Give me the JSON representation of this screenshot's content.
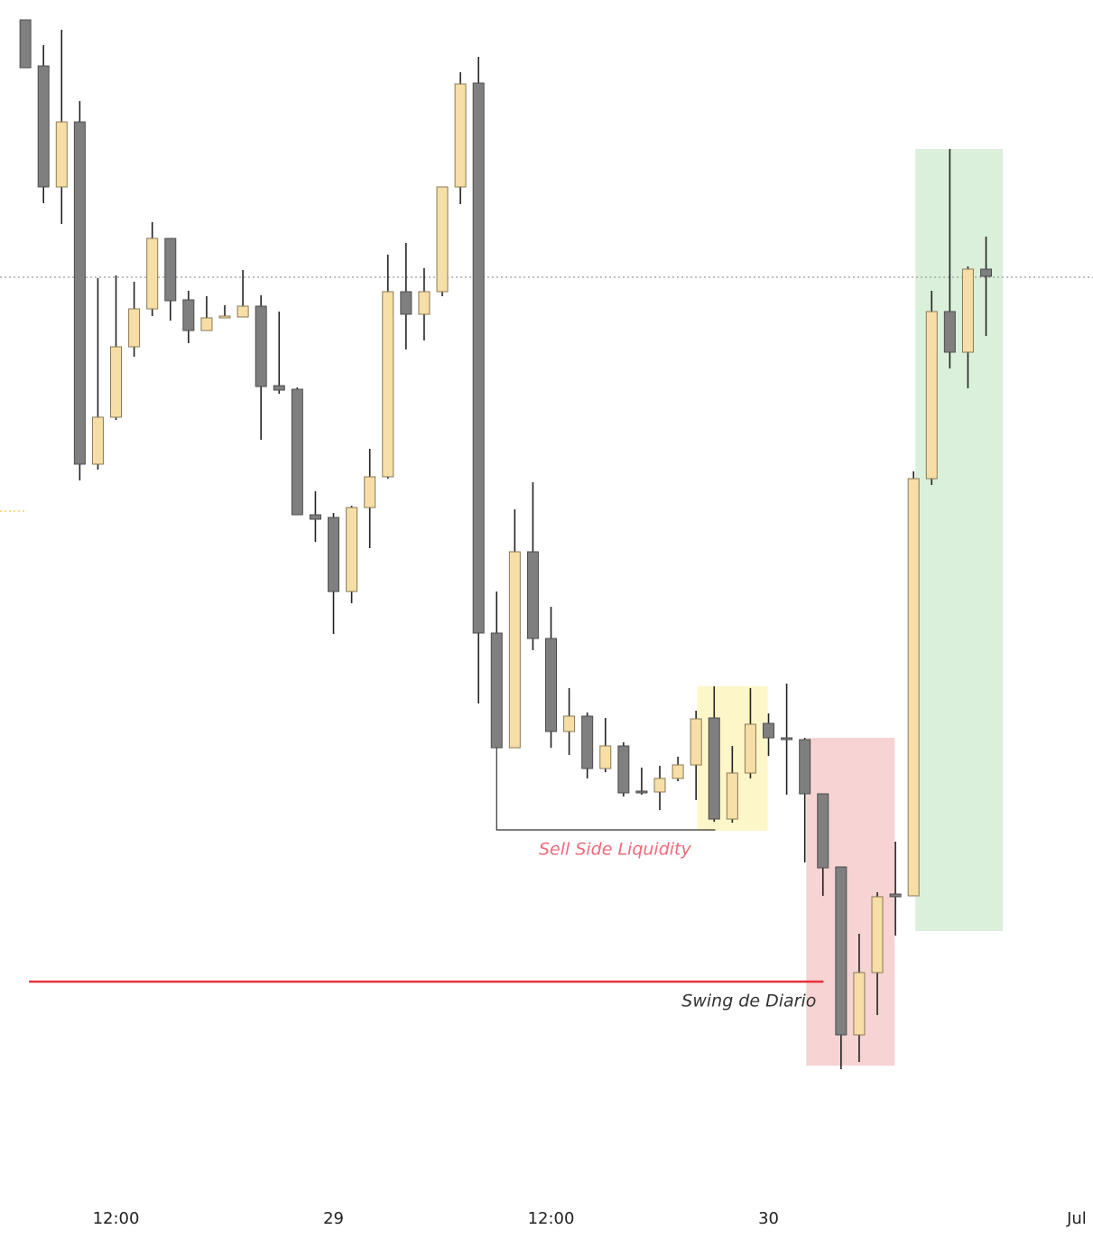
{
  "chart_data": {
    "type": "candlestick",
    "categories": [
      null,
      null,
      null,
      null,
      null,
      null,
      null,
      null,
      null,
      null,
      null,
      null,
      null,
      null,
      null,
      null,
      null,
      null,
      null,
      null,
      null,
      null,
      null,
      null,
      null,
      null,
      null,
      null,
      null,
      null,
      null,
      null,
      null,
      null,
      null,
      null,
      null,
      null,
      null,
      null,
      null,
      null,
      null,
      null,
      null,
      null,
      null,
      null,
      null,
      null,
      null,
      null,
      null,
      null
    ],
    "open": [
      1378,
      1327,
      1193,
      1265,
      886,
      938,
      1016,
      1058,
      1136,
      1068,
      1034,
      1048,
      1049,
      1061,
      973,
      969,
      830,
      827,
      745,
      838,
      872,
      1077,
      1052,
      1077,
      1193,
      1308,
      699,
      572,
      789,
      693,
      590,
      607,
      549,
      574,
      524,
      523,
      538,
      553,
      605,
      493,
      544,
      599,
      583,
      581,
      521,
      440,
      254,
      323,
      410,
      408,
      870,
      1055,
      1010,
      1102
    ],
    "high": [
      1378,
      1350,
      1367,
      1288,
      1092,
      1095,
      1088,
      1154,
      1136,
      1078,
      1072,
      1062,
      1101,
      1073,
      1055,
      971,
      856,
      832,
      840,
      903,
      1118,
      1131,
      1103,
      1193,
      1320,
      1337,
      745,
      836,
      866,
      728,
      638,
      611,
      605,
      578,
      550,
      552,
      562,
      613,
      640,
      574,
      638,
      610,
      643,
      583,
      521,
      440,
      366,
      412,
      468,
      878,
      1078,
      1235,
      1105,
      1138
    ],
    "low": [
      1325,
      1175,
      1152,
      868,
      880,
      935,
      1005,
      1050,
      1045,
      1020,
      1034,
      1048,
      1049,
      913,
      964,
      830,
      800,
      698,
      732,
      793,
      870,
      1013,
      1023,
      1072,
      1174,
      621,
      572,
      572,
      680,
      572,
      564,
      538,
      545,
      518,
      520,
      503,
      535,
      514,
      490,
      489,
      538,
      563,
      520,
      445,
      408,
      216,
      224,
      276,
      364,
      408,
      863,
      992,
      970,
      1028
    ],
    "close": [
      1325,
      1193,
      1265,
      886,
      938,
      1016,
      1058,
      1136,
      1067,
      1034,
      1048,
      1050,
      1061,
      972,
      968,
      830,
      825,
      745,
      838,
      872,
      1077,
      1052,
      1077,
      1193,
      1307,
      699,
      572,
      789,
      693,
      590,
      607,
      549,
      574,
      522,
      522,
      538,
      553,
      604,
      493,
      544,
      598,
      583,
      581,
      521,
      439,
      254,
      323,
      407,
      407,
      870,
      1055,
      1010,
      1102,
      1094
    ],
    "up_color": "#f6dea6",
    "down_color": "#7f7f7f",
    "xlim": [
      -1.4,
      58.9
    ],
    "ylim": [
      28,
      1400
    ],
    "xticks": [
      {
        "value": 5,
        "label": "12:00"
      },
      {
        "value": 17,
        "label": "29"
      },
      {
        "value": 29,
        "label": "12:00"
      },
      {
        "value": 41,
        "label": "30"
      },
      {
        "value": 58,
        "label": "Jul"
      }
    ],
    "zones": [
      {
        "x": [
          37.06,
          40.95
        ],
        "y": [
          480,
          640
        ],
        "color": "#fdf6c8"
      },
      {
        "x": [
          43.08,
          47.96
        ],
        "y": [
          220,
          583
        ],
        "color": "#f7d3d3"
      },
      {
        "x": [
          49.1,
          53.93
        ],
        "y": [
          369,
          1235
        ],
        "color": "#dbf0da"
      }
    ],
    "levels": [
      {
        "x": [
          -1.4,
          58.9
        ],
        "value": 1093,
        "color": "#999999",
        "style": "dotted"
      },
      {
        "x": [
          -1.4,
          0.1
        ],
        "value": 834,
        "color": "#f5c342",
        "style": "dotted"
      },
      {
        "x": [
          0.2,
          44.03
        ],
        "value": 313,
        "color": "#e8313a",
        "style": "solid",
        "text": "Swing de Diario",
        "text_color": "#333333"
      }
    ],
    "bracket": {
      "x": [
        26,
        26,
        38.06
      ],
      "y": [
        572,
        481,
        481
      ],
      "color": "#333333",
      "text": "Sell Side Liquidity",
      "text_color": "#f06a7a"
    }
  }
}
